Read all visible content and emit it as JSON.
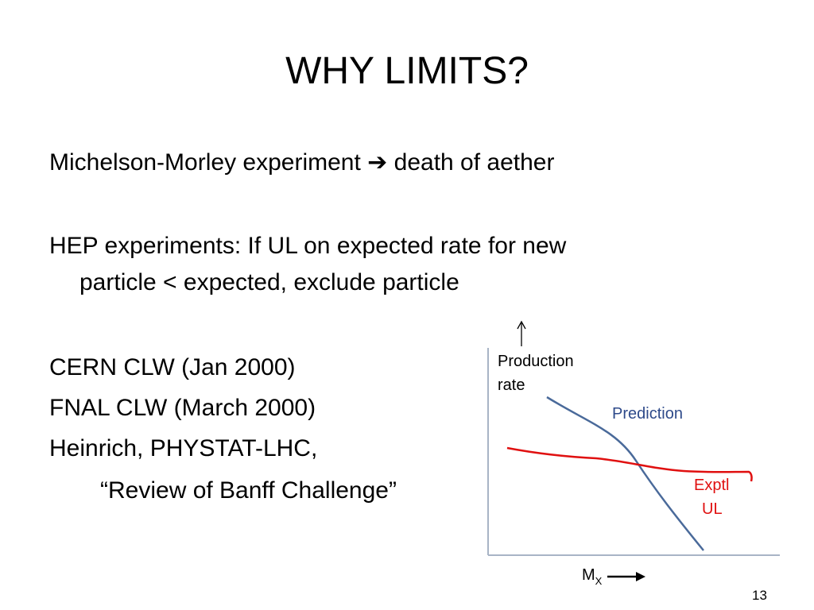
{
  "slide": {
    "title": "WHY LIMITS?",
    "line1": {
      "before": "Michelson-Morley experiment",
      "arrow": "➔",
      "after": "death of aether"
    },
    "hep": {
      "line1": "HEP experiments: If UL on expected rate for new",
      "line2": "particle < expected, exclude particle"
    },
    "refs": [
      "CERN CLW (Jan 2000)",
      "FNAL CLW (March 2000)",
      "Heinrich, PHYSTAT-LHC,"
    ],
    "review": "“Review of Banff Challenge”",
    "page_number": "13"
  },
  "diagram": {
    "y_label_line1": "Production",
    "y_label_line2": "rate",
    "x_label_main": "M",
    "x_label_sub": "X",
    "prediction_label": "Prediction",
    "ul_label_line1": "Exptl",
    "ul_label_line2": "UL",
    "colors": {
      "prediction": "#4a6a9a",
      "ul": "#e01010",
      "prediction_text": "#2e4a8a",
      "ul_text": "#e01010",
      "axis": "#a8b4c6"
    }
  }
}
